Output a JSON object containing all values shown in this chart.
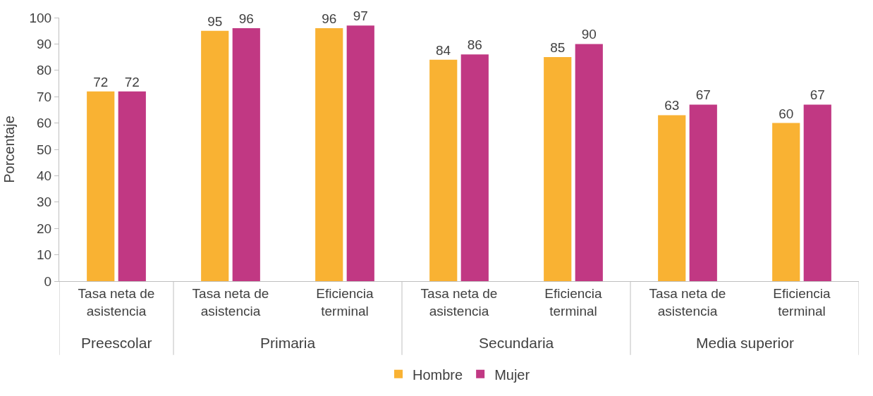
{
  "chart_data": {
    "type": "bar",
    "ylabel": "Porcentaje",
    "categories": [
      "Tasa neta de\nasistencia",
      "Tasa neta de\nasistencia",
      "Eficiencia\nterminal",
      "Tasa neta de\nasistencia",
      "Eficiencia\nterminal",
      "Tasa neta de\nasistencia",
      "Eficiencia\nterminal"
    ],
    "series": [
      {
        "name": "Hombre",
        "color": "#f9b233",
        "values": [
          72,
          95,
          96,
          84,
          85,
          63,
          60
        ]
      },
      {
        "name": "Mujer",
        "color": "#c13883",
        "values": [
          72,
          96,
          97,
          86,
          90,
          67,
          67
        ]
      }
    ],
    "annotations": [
      "Preescolar",
      "Primaria",
      "Secundaria",
      "Media superior"
    ],
    "ylim": [
      0,
      100
    ],
    "yticks": [
      0,
      10,
      20,
      30,
      40,
      50,
      60,
      70,
      80,
      90,
      100
    ],
    "data_labels": true,
    "legend": "bottom"
  }
}
